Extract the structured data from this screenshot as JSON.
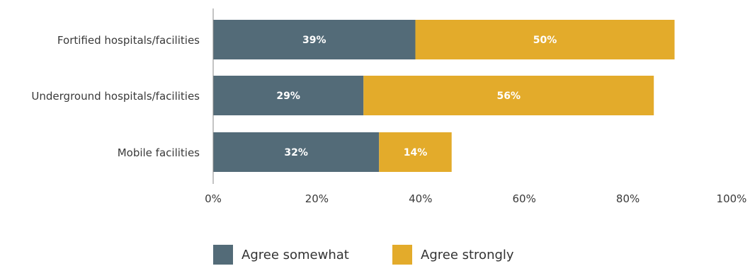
{
  "chart_data": {
    "type": "bar",
    "orientation": "horizontal",
    "stacked": true,
    "categories": [
      "Fortified hospitals/facilities",
      "Underground hospitals/facilities",
      "Mobile facilities"
    ],
    "series": [
      {
        "name": "Agree somewhat",
        "values": [
          39,
          29,
          32
        ],
        "labels": [
          "39%",
          "29%",
          "32%"
        ],
        "color": "#536b78"
      },
      {
        "name": "Agree strongly",
        "values": [
          50,
          56,
          14
        ],
        "labels": [
          "50%",
          "56%",
          "14%"
        ],
        "color": "#e3ab2b"
      }
    ],
    "xlim": [
      0,
      100
    ],
    "xticks": [
      0,
      20,
      40,
      60,
      80,
      100
    ],
    "xtick_labels": [
      "0%",
      "20%",
      "40%",
      "60%",
      "80%",
      "100%"
    ],
    "grid": false,
    "legend_position": "bottom"
  }
}
